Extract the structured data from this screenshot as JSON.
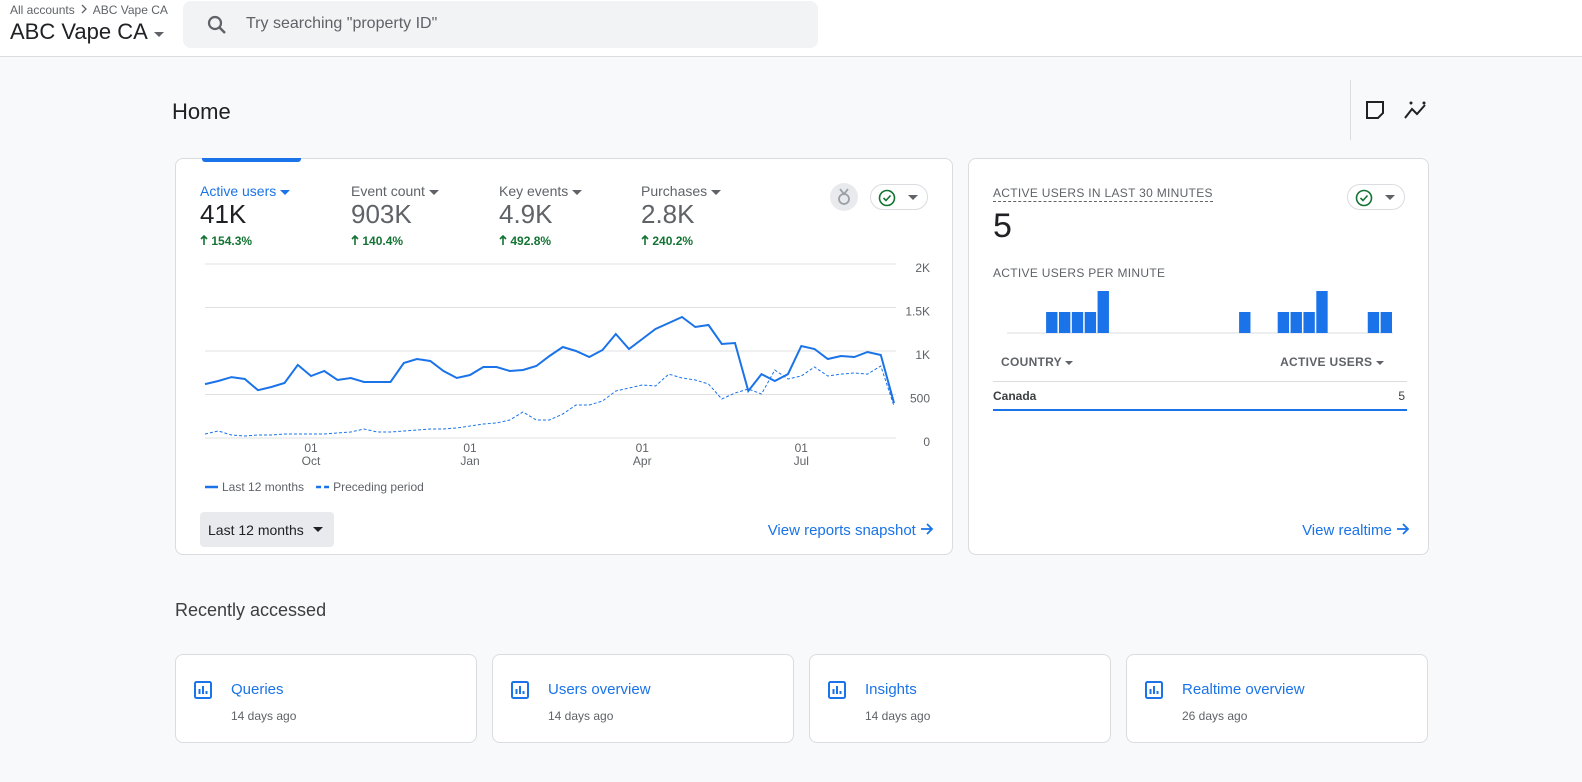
{
  "header": {
    "breadcrumb_root": "All accounts",
    "breadcrumb_current": "ABC Vape CA",
    "account_name": "ABC Vape CA",
    "search_placeholder": "Try searching \"property ID\""
  },
  "page_title": "Home",
  "overview": {
    "metrics": [
      {
        "label": "Active users",
        "value": "41K",
        "change": "154.3%"
      },
      {
        "label": "Event count",
        "value": "903K",
        "change": "140.4%"
      },
      {
        "label": "Key events",
        "value": "4.9K",
        "change": "492.8%"
      },
      {
        "label": "Purchases",
        "value": "2.8K",
        "change": "240.2%"
      }
    ],
    "period": "Last 12 months",
    "link": "View reports snapshot"
  },
  "realtime": {
    "title": "ACTIVE USERS IN LAST 30 MINUTES",
    "value": "5",
    "table": {
      "columns": [
        "COUNTRY",
        "ACTIVE USERS"
      ],
      "rows": [
        [
          "Canada",
          "5"
        ]
      ]
    },
    "link": "View realtime"
  },
  "recently_accessed": {
    "title": "Recently accessed",
    "items": [
      {
        "name": "Queries",
        "time": "14 days ago"
      },
      {
        "name": "Users overview",
        "time": "14 days ago"
      },
      {
        "name": "Insights",
        "time": "14 days ago"
      },
      {
        "name": "Realtime overview",
        "time": "26 days ago"
      }
    ]
  },
  "chart_data": [
    {
      "type": "line",
      "categories": [
        null,
        null,
        null,
        null,
        null,
        null,
        null,
        null,
        "01 Oct",
        null,
        null,
        null,
        null,
        null,
        null,
        null,
        null,
        null,
        null,
        null,
        "01 Jan",
        null,
        null,
        null,
        null,
        null,
        null,
        null,
        null,
        null,
        null,
        null,
        null,
        "01 Apr",
        null,
        null,
        null,
        null,
        null,
        null,
        null,
        null,
        null,
        null,
        null,
        "01 Jul",
        null,
        null,
        null,
        null,
        null,
        null,
        null
      ],
      "series": [
        {
          "name": "Last 12 months",
          "color": "#1a73e8",
          "line_style": "solid",
          "values": [
            620,
            655,
            700,
            678,
            550,
            586,
            632,
            840,
            713,
            770,
            667,
            690,
            644,
            644,
            644,
            862,
            908,
            885,
            770,
            690,
            724,
            816,
            816,
            770,
            782,
            828,
            943,
            1046,
            1000,
            931,
            1011,
            1195,
            1023,
            1138,
            1253,
            1322,
            1391,
            1276,
            1299,
            1080,
            1092,
            540,
            735,
            655,
            735,
            1057,
            1023,
            908,
            943,
            931,
            989,
            954,
            402
          ]
        },
        {
          "name": "Preceding period",
          "color": "#1a73e8",
          "line_style": "dashed",
          "values": [
            46,
            80,
            34,
            23,
            34,
            34,
            46,
            46,
            46,
            46,
            57,
            69,
            103,
            69,
            69,
            80,
            92,
            103,
            103,
            115,
            138,
            161,
            172,
            207,
            299,
            207,
            207,
            276,
            379,
            379,
            425,
            540,
            575,
            609,
            598,
            735,
            690,
            667,
            621,
            448,
            517,
            563,
            506,
            782,
            678,
            713,
            816,
            713,
            735,
            747,
            735,
            828,
            368
          ]
        }
      ],
      "ylim": [
        0,
        2000
      ],
      "yticks": [
        {
          "value": 0,
          "label": "0"
        },
        500,
        {
          "value": 1000,
          "label": "1K"
        },
        {
          "value": 1500,
          "label": "1.5K"
        },
        {
          "value": 2000,
          "label": "2K"
        }
      ],
      "grid": true,
      "y_axis_side": "right"
    },
    {
      "type": "bar",
      "title": "ACTIVE USERS PER MINUTE",
      "color": "#1a73e8",
      "values": [
        0,
        0,
        0,
        1,
        1,
        1,
        1,
        2,
        0,
        0,
        0,
        0,
        0,
        0,
        0,
        0,
        0,
        0,
        1,
        0,
        0,
        1,
        1,
        1,
        2,
        0,
        0,
        0,
        1,
        1
      ]
    }
  ]
}
